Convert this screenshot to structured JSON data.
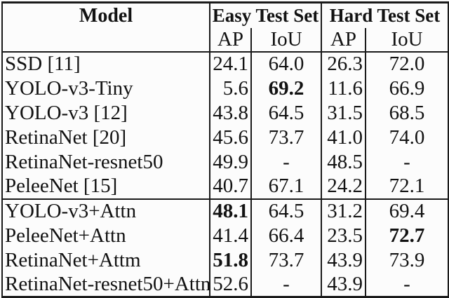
{
  "chart_data": {
    "type": "table",
    "header": {
      "model": "Model",
      "group_easy": "Easy Test Set",
      "group_hard": "Hard Test Set",
      "sub_easy_ap": "AP",
      "sub_easy_iou": "IoU",
      "sub_hard_ap": "AP",
      "sub_hard_iou": "IoU"
    },
    "columns": [
      "Model",
      "Easy AP",
      "Easy IoU",
      "Hard AP",
      "Hard IoU"
    ],
    "groups": [
      {
        "rows": [
          {
            "model": "SSD [11]",
            "values": [
              "24.1",
              "64.0",
              "26.3",
              "72.0"
            ],
            "bold": []
          },
          {
            "model": "YOLO-v3-Tiny",
            "values": [
              "5.6",
              "69.2",
              "11.6",
              "66.9"
            ],
            "bold": [
              1
            ]
          },
          {
            "model": "YOLO-v3 [12]",
            "values": [
              "43.8",
              "64.5",
              "31.5",
              "68.5"
            ],
            "bold": []
          },
          {
            "model": "RetinaNet [20]",
            "values": [
              "45.6",
              "73.7",
              "41.0",
              "74.0"
            ],
            "bold": []
          },
          {
            "model": "RetinaNet-resnet50",
            "values": [
              "49.9",
              "-",
              "48.5",
              "-"
            ],
            "bold": []
          },
          {
            "model": "PeleeNet [15]",
            "values": [
              "40.7",
              "67.1",
              "24.2",
              "72.1"
            ],
            "bold": []
          }
        ]
      },
      {
        "rows": [
          {
            "model": "YOLO-v3+Attn",
            "values": [
              "48.1",
              "64.5",
              "31.2",
              "69.4"
            ],
            "bold": [
              0
            ]
          },
          {
            "model": "PeleeNet+Attn",
            "values": [
              "41.4",
              "66.4",
              "23.5",
              "72.7"
            ],
            "bold": [
              3
            ]
          },
          {
            "model": "RetinaNet+Attm",
            "values": [
              "51.8",
              "73.7",
              "43.9",
              "73.9"
            ],
            "bold": [
              0
            ]
          },
          {
            "model": "RetinaNet-resnet50+Attn",
            "values": [
              "52.6",
              "-",
              "43.9",
              "-"
            ],
            "bold": []
          }
        ]
      }
    ]
  },
  "colors": {
    "border": "#1a1a1a",
    "text": "#121212",
    "background": "#fcfcfc"
  }
}
